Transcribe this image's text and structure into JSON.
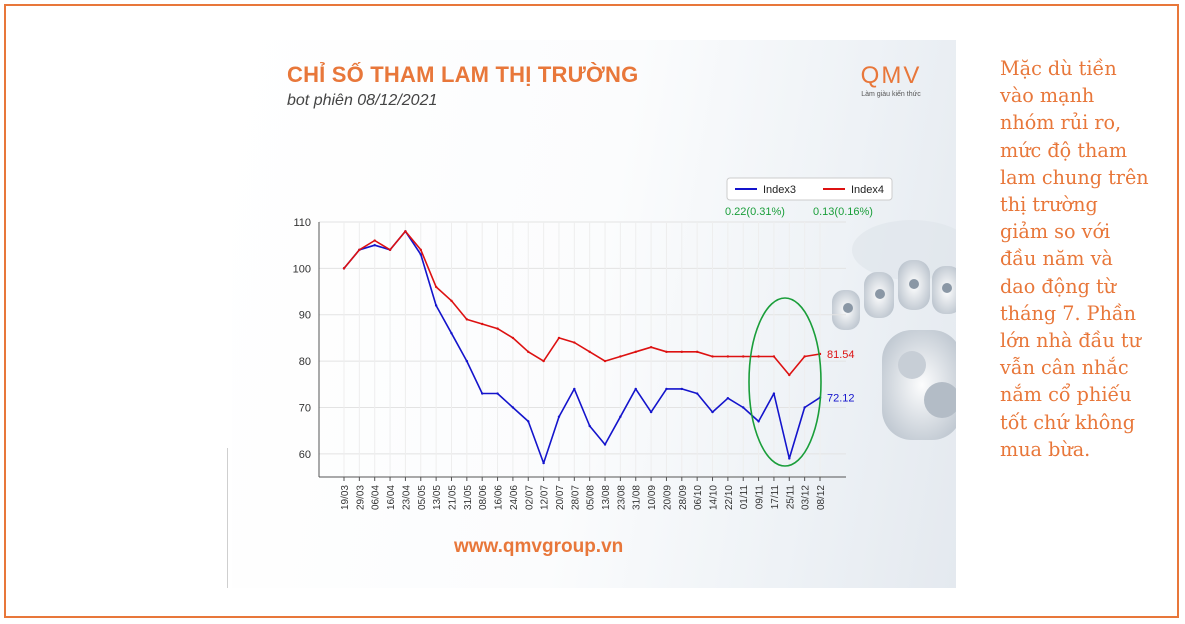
{
  "header": {
    "title": "CHỈ SỐ THAM LAM THỊ TRƯỜNG",
    "subtitle": "bot phiên 08/12/2021",
    "brand_logo": "QMV",
    "brand_tagline": "Làm giàu kiến thức",
    "website": "www.qmvgroup.vn"
  },
  "side_note": "Mặc dù tiền vào mạnh nhóm rủi ro, mức độ tham lam chung trên thị trường giảm so với đầu năm và dao động từ tháng 7. Phần lớn nhà đầu tư vẫn cân nhắc nắm cổ phiếu tốt chứ không mua bừa.",
  "colors": {
    "accent": "#e8773a",
    "index3": "#1414cc",
    "index4": "#dd1111",
    "annotation": "#1a9e3a"
  },
  "chart_data": {
    "type": "line",
    "ylim": [
      55,
      110
    ],
    "yticks": [
      60,
      70,
      80,
      90,
      100,
      110
    ],
    "x": [
      "19/03",
      "29/03",
      "06/04",
      "16/04",
      "23/04",
      "05/05",
      "13/05",
      "21/05",
      "31/05",
      "08/06",
      "16/06",
      "24/06",
      "02/07",
      "12/07",
      "20/07",
      "28/07",
      "05/08",
      "13/08",
      "23/08",
      "31/08",
      "10/09",
      "20/09",
      "28/09",
      "06/10",
      "14/10",
      "22/10",
      "01/11",
      "09/11",
      "17/11",
      "25/11",
      "03/12",
      "08/12"
    ],
    "series": [
      {
        "name": "Index3",
        "values": [
          100,
          104,
          105,
          104,
          108,
          103,
          92,
          86,
          80,
          73,
          73,
          70,
          67,
          58,
          68,
          74,
          66,
          62,
          68,
          74,
          69,
          74,
          74,
          73,
          69,
          72,
          70,
          67,
          73,
          59,
          70,
          72.12
        ],
        "last_label": "72.12",
        "change_label": "0.22(0.31%)"
      },
      {
        "name": "Index4",
        "values": [
          100,
          104,
          106,
          104,
          108,
          104,
          96,
          93,
          89,
          88,
          87,
          85,
          82,
          80,
          85,
          84,
          82,
          80,
          81,
          82,
          83,
          82,
          82,
          82,
          81,
          81,
          81,
          81,
          81,
          77,
          81,
          81.54
        ],
        "last_label": "81.54",
        "change_label": "0.13(0.16%)"
      }
    ],
    "legend": "top-right",
    "grid": true
  }
}
